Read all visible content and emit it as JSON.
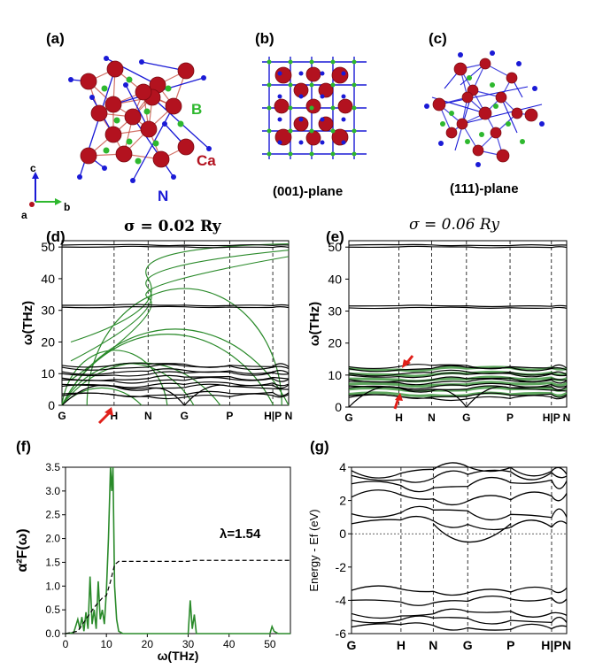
{
  "panels": {
    "a": "(a)",
    "b": "(b)",
    "c": "(c)",
    "d": "(d)",
    "e": "(e)",
    "f": "(f)",
    "g": "(g)"
  },
  "structure": {
    "atom_labels": {
      "B": "B",
      "Ca": "Ca",
      "N": "N"
    },
    "axes": {
      "a": "a",
      "b": "b",
      "c": "c"
    },
    "plane_b": "(001)-plane",
    "plane_c": "(111)-plane",
    "colors": {
      "Ca": "#b3121f",
      "N": "#1a1ad6",
      "B": "#2eb82e",
      "bond_ca": "#c0392b"
    }
  },
  "sigma": {
    "d": "σ = 0.02 Ry",
    "e": "σ = 0.06 Ry"
  },
  "chart_data": [
    {
      "panel": "d",
      "type": "line",
      "ylabel": "ω(THz)",
      "ylim": [
        0,
        52
      ],
      "yticks": [
        0,
        10,
        20,
        30,
        40,
        50
      ],
      "kpath": [
        "G",
        "H",
        "N",
        "G",
        "P",
        "H|P",
        "N"
      ],
      "bands_black_THz": [
        3,
        6,
        8,
        10,
        12,
        31,
        50
      ],
      "green_color": "#2a8a2a"
    },
    {
      "panel": "e",
      "type": "line",
      "ylabel": "ω(THz)",
      "ylim": [
        0,
        52
      ],
      "yticks": [
        0,
        10,
        20,
        30,
        40,
        50
      ],
      "kpath": [
        "G",
        "H",
        "N",
        "G",
        "P",
        "H|P",
        "N"
      ],
      "bands_black_THz": [
        3,
        6,
        8,
        10,
        12,
        31,
        50
      ]
    },
    {
      "panel": "f",
      "type": "line",
      "ylabel": "α²F(ω)",
      "xlabel": "ω(THz)",
      "xlim": [
        0,
        55
      ],
      "ylim": [
        0,
        3.5
      ],
      "xticks": [
        0,
        10,
        20,
        30,
        40,
        50
      ],
      "yticks": [
        "0.0",
        "0.5",
        "1.0",
        "1.5",
        "2.0",
        "2.5",
        "3.0",
        "3.5"
      ],
      "annotation": "λ=1.54",
      "series": [
        {
          "points": [
            [
              0,
              0
            ],
            [
              2,
              0.02
            ],
            [
              3,
              0.3
            ],
            [
              3.5,
              0.1
            ],
            [
              4,
              0.35
            ],
            [
              4.5,
              0.05
            ],
            [
              5,
              0.45
            ],
            [
              5.5,
              0.1
            ],
            [
              6,
              1.2
            ],
            [
              6.5,
              0.2
            ],
            [
              7,
              0.5
            ],
            [
              7.5,
              0.1
            ],
            [
              8,
              1.1
            ],
            [
              8.5,
              0.3
            ],
            [
              9,
              0.5
            ],
            [
              9.5,
              0.2
            ],
            [
              10,
              0.9
            ],
            [
              10.5,
              2.0
            ],
            [
              11,
              3.5
            ],
            [
              11.3,
              3.0
            ],
            [
              11.6,
              3.5
            ],
            [
              12,
              1.0
            ],
            [
              12.5,
              0.3
            ],
            [
              13,
              0.05
            ],
            [
              14,
              0
            ],
            [
              30,
              0
            ],
            [
              30.5,
              0.7
            ],
            [
              31,
              0.1
            ],
            [
              31.5,
              0.4
            ],
            [
              32,
              0
            ],
            [
              50,
              0
            ],
            [
              50.5,
              0.15
            ],
            [
              51,
              0.05
            ],
            [
              52,
              0
            ],
            [
              55,
              0
            ]
          ]
        },
        {
          "points": [
            [
              0,
              0
            ],
            [
              3,
              0.05
            ],
            [
              5,
              0.3
            ],
            [
              7,
              0.55
            ],
            [
              9,
              0.75
            ],
            [
              10,
              0.8
            ],
            [
              11,
              1.1
            ],
            [
              12,
              1.45
            ],
            [
              13,
              1.52
            ],
            [
              30,
              1.52
            ],
            [
              31,
              1.54
            ],
            [
              55,
              1.54
            ]
          ]
        }
      ]
    },
    {
      "panel": "g",
      "type": "line",
      "ylabel": "Energy - Ef (eV)",
      "ylim": [
        -6,
        4
      ],
      "yticks": [
        -6,
        -4,
        -2,
        0,
        2,
        4
      ],
      "kpath": [
        "G",
        "H",
        "N",
        "G",
        "P",
        "H|P",
        "N"
      ]
    }
  ]
}
